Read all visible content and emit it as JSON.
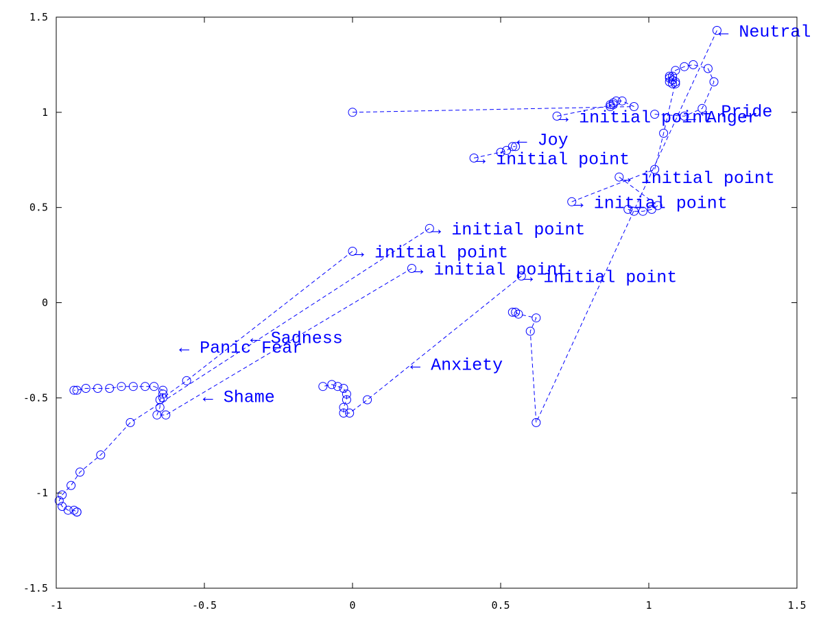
{
  "chart_data": {
    "type": "scatter",
    "title": "",
    "xlabel": "",
    "ylabel": "",
    "xlim": [
      -1,
      1.5
    ],
    "ylim": [
      -1.5,
      1.5
    ],
    "x_ticks": [
      -1,
      -0.5,
      0,
      0.5,
      1,
      1.5
    ],
    "x_tick_labels": [
      "-1",
      "-0.5",
      "0",
      "0.5",
      "1",
      "1.5"
    ],
    "y_ticks": [
      -1.5,
      -1,
      -0.5,
      0,
      0.5,
      1,
      1.5
    ],
    "y_tick_labels": [
      "-1.5",
      "-1",
      "-0.5",
      "0",
      "0.5",
      "1",
      "1.5"
    ],
    "grid": false,
    "legend": "none",
    "color": "#0000ff",
    "marker": "open-circle",
    "line_style": "dashed",
    "series": [
      {
        "points": [
          [
            0.0,
            0.27
          ],
          [
            -0.56,
            -0.41
          ],
          [
            -0.64,
            -0.5
          ],
          [
            -0.64,
            -0.46
          ],
          [
            -0.67,
            -0.44
          ],
          [
            -0.7,
            -0.44
          ],
          [
            -0.74,
            -0.44
          ],
          [
            -0.78,
            -0.44
          ],
          [
            -0.82,
            -0.45
          ],
          [
            -0.86,
            -0.45
          ],
          [
            -0.9,
            -0.45
          ],
          [
            -0.93,
            -0.46
          ],
          [
            -0.94,
            -0.46
          ]
        ]
      },
      {
        "points": [
          [
            0.26,
            0.39
          ],
          [
            -0.75,
            -0.63
          ],
          [
            -0.85,
            -0.8
          ],
          [
            -0.92,
            -0.89
          ],
          [
            -0.95,
            -0.96
          ],
          [
            -0.98,
            -1.01
          ],
          [
            -0.99,
            -1.04
          ],
          [
            -0.98,
            -1.07
          ],
          [
            -0.96,
            -1.09
          ],
          [
            -0.94,
            -1.09
          ],
          [
            -0.93,
            -1.1
          ],
          [
            -0.93,
            -1.1
          ]
        ]
      },
      {
        "points": [
          [
            0.2,
            0.18
          ],
          [
            -0.63,
            -0.59
          ],
          [
            -0.66,
            -0.59
          ],
          [
            -0.65,
            -0.55
          ],
          [
            -0.65,
            -0.51
          ],
          [
            -0.64,
            -0.48
          ]
        ]
      },
      {
        "points": [
          [
            0.57,
            0.14
          ],
          [
            0.05,
            -0.51
          ],
          [
            -0.01,
            -0.58
          ],
          [
            -0.03,
            -0.58
          ],
          [
            -0.03,
            -0.55
          ],
          [
            -0.02,
            -0.51
          ],
          [
            -0.02,
            -0.48
          ],
          [
            -0.03,
            -0.45
          ],
          [
            -0.05,
            -0.44
          ],
          [
            -0.07,
            -0.43
          ],
          [
            -0.1,
            -0.44
          ]
        ]
      },
      {
        "points": [
          [
            0.41,
            0.76
          ],
          [
            0.5,
            0.79
          ],
          [
            0.52,
            0.8
          ],
          [
            0.54,
            0.82
          ],
          [
            0.55,
            0.82
          ]
        ]
      },
      {
        "points": [
          [
            0.69,
            0.98
          ],
          [
            0.88,
            1.04
          ],
          [
            0.88,
            1.05
          ],
          [
            0.87,
            1.04
          ],
          [
            0.87,
            1.03
          ]
        ]
      },
      {
        "points": [
          [
            0.74,
            0.53
          ],
          [
            1.02,
            0.7
          ],
          [
            1.05,
            0.89
          ],
          [
            1.09,
            1.16
          ],
          [
            1.08,
            1.17
          ],
          [
            1.07,
            1.18
          ],
          [
            1.08,
            1.19
          ]
        ]
      },
      {
        "points": [
          [
            0.9,
            0.66
          ],
          [
            1.03,
            0.51
          ],
          [
            1.01,
            0.49
          ],
          [
            0.98,
            0.48
          ],
          [
            0.95,
            0.48
          ],
          [
            0.93,
            0.49
          ]
        ]
      },
      {
        "points": [
          [
            1.23,
            1.43
          ],
          [
            0.62,
            -0.63
          ],
          [
            0.6,
            -0.15
          ],
          [
            0.62,
            -0.08
          ],
          [
            0.56,
            -0.06
          ],
          [
            0.55,
            -0.05
          ],
          [
            0.54,
            -0.05
          ]
        ]
      },
      {
        "points": [
          [
            1.02,
            0.99
          ],
          [
            1.12,
            0.98
          ],
          [
            1.18,
            1.02
          ],
          [
            1.22,
            1.16
          ],
          [
            1.2,
            1.23
          ],
          [
            1.15,
            1.25
          ],
          [
            1.12,
            1.24
          ],
          [
            1.09,
            1.22
          ],
          [
            1.07,
            1.19
          ],
          [
            1.07,
            1.16
          ],
          [
            1.08,
            1.15
          ],
          [
            1.09,
            1.15
          ]
        ]
      },
      {
        "points": [
          [
            0.0,
            1.0
          ],
          [
            0.95,
            1.03
          ],
          [
            0.91,
            1.06
          ],
          [
            0.89,
            1.06
          ]
        ]
      }
    ],
    "annotations": [
      {
        "text": "← Neutral",
        "x": 1.23,
        "y": 1.43
      },
      {
        "text": "← Pride",
        "x": 1.17,
        "y": 1.01
      },
      {
        "text": "← Anger",
        "x": 1.12,
        "y": 0.98
      },
      {
        "text": "← Joy",
        "x": 0.55,
        "y": 0.86
      },
      {
        "text": "→ initial point",
        "x": 0.69,
        "y": 0.98
      },
      {
        "text": "→ initial point",
        "x": 0.41,
        "y": 0.76
      },
      {
        "text": "→ initial point",
        "x": 0.9,
        "y": 0.66
      },
      {
        "text": "→ initial point",
        "x": 0.74,
        "y": 0.53
      },
      {
        "text": "→ initial point",
        "x": 0.26,
        "y": 0.39
      },
      {
        "text": "→ initial point",
        "x": 0.0,
        "y": 0.27
      },
      {
        "text": "→ initial point",
        "x": 0.2,
        "y": 0.18
      },
      {
        "text": "→ initial point",
        "x": 0.57,
        "y": 0.14
      },
      {
        "text": "← Sadness",
        "x": -0.35,
        "y": -0.18
      },
      {
        "text": "← Panic Fear",
        "x": -0.59,
        "y": -0.23
      },
      {
        "text": "← Anxiety",
        "x": 0.19,
        "y": -0.32
      },
      {
        "text": "← Shame",
        "x": -0.51,
        "y": -0.49
      }
    ]
  }
}
